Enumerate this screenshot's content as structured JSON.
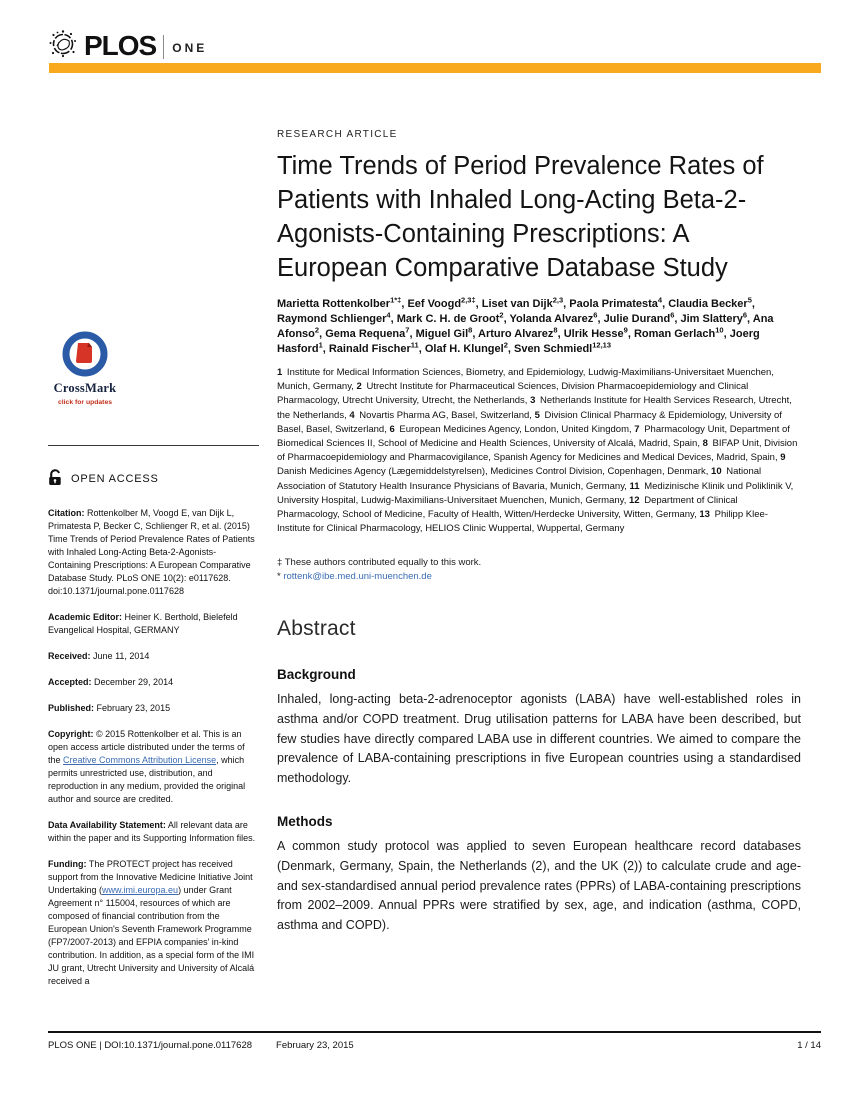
{
  "header": {
    "brand": "PLOS",
    "journal": "ONE",
    "accent_color": "#F8A91E"
  },
  "article": {
    "kicker": "RESEARCH ARTICLE",
    "title": "Time Trends of Period Prevalence Rates of Patients with Inhaled Long-Acting Beta-2-Agonists-Containing Prescriptions: A European Comparative Database Study",
    "authors": [
      {
        "name": "Marietta Rottenkolber",
        "sup": "1*‡"
      },
      {
        "name": "Eef Voogd",
        "sup": "2,3‡"
      },
      {
        "name": "Liset van Dijk",
        "sup": "2,3"
      },
      {
        "name": "Paola Primatesta",
        "sup": "4"
      },
      {
        "name": "Claudia Becker",
        "sup": "5"
      },
      {
        "name": "Raymond Schlienger",
        "sup": "4"
      },
      {
        "name": "Mark C. H. de Groot",
        "sup": "2"
      },
      {
        "name": "Yolanda Alvarez",
        "sup": "6"
      },
      {
        "name": "Julie Durand",
        "sup": "6"
      },
      {
        "name": "Jim Slattery",
        "sup": "6"
      },
      {
        "name": "Ana Afonso",
        "sup": "2"
      },
      {
        "name": "Gema Requena",
        "sup": "7"
      },
      {
        "name": "Miguel Gil",
        "sup": "8"
      },
      {
        "name": "Arturo Alvarez",
        "sup": "8"
      },
      {
        "name": "Ulrik Hesse",
        "sup": "9"
      },
      {
        "name": "Roman Gerlach",
        "sup": "10"
      },
      {
        "name": "Joerg Hasford",
        "sup": "1"
      },
      {
        "name": "Rainald Fischer",
        "sup": "11"
      },
      {
        "name": "Olaf H. Klungel",
        "sup": "2"
      },
      {
        "name": "Sven Schmiedl",
        "sup": "12,13"
      }
    ],
    "affiliations": [
      {
        "num": "1",
        "text": "Institute for Medical Information Sciences, Biometry, and Epidemiology, Ludwig-Maximilians-Universitaet Muenchen, Munich, Germany"
      },
      {
        "num": "2",
        "text": "Utrecht Institute for Pharmaceutical Sciences, Division Pharmacoepidemiology and Clinical Pharmacology, Utrecht University, Utrecht, the Netherlands"
      },
      {
        "num": "3",
        "text": "Netherlands Institute for Health Services Research, Utrecht, the Netherlands"
      },
      {
        "num": "4",
        "text": "Novartis Pharma AG, Basel, Switzerland"
      },
      {
        "num": "5",
        "text": "Division Clinical Pharmacy & Epidemiology, University of Basel, Basel, Switzerland"
      },
      {
        "num": "6",
        "text": "European Medicines Agency, London, United Kingdom"
      },
      {
        "num": "7",
        "text": "Pharmacology Unit, Department of Biomedical Sciences II, School of Medicine and Health Sciences, University of Alcalá, Madrid, Spain"
      },
      {
        "num": "8",
        "text": "BIFAP Unit, Division of Pharmacoepidemiology and Pharmacovigilance, Spanish Agency for Medicines and Medical Devices, Madrid, Spain"
      },
      {
        "num": "9",
        "text": "Danish Medicines Agency (Lægemiddelstyrelsen), Medicines Control Division, Copenhagen, Denmark"
      },
      {
        "num": "10",
        "text": "National Association of Statutory Health Insurance Physicians of Bavaria, Munich, Germany"
      },
      {
        "num": "11",
        "text": "Medizinische Klinik und Poliklinik V, University Hospital, Ludwig-Maximilians-Universitaet Muenchen, Munich, Germany"
      },
      {
        "num": "12",
        "text": "Department of Clinical Pharmacology, School of Medicine, Faculty of Health, Witten/Herdecke University, Witten, Germany"
      },
      {
        "num": "13",
        "text": "Philipp Klee-Institute for Clinical Pharmacology, HELIOS Clinic Wuppertal, Wuppertal, Germany"
      }
    ],
    "contrib_note": "‡ These authors contributed equally to this work.",
    "email_marker": "*",
    "email": "rottenk@ibe.med.uni-muenchen.de",
    "abstract_heading": "Abstract",
    "sections": [
      {
        "heading": "Background",
        "text": "Inhaled, long-acting beta-2-adrenoceptor agonists (LABA) have well-established roles in asthma and/or COPD treatment. Drug utilisation patterns for LABA have been described, but few studies have directly compared LABA use in different countries. We aimed to compare the prevalence of LABA-containing prescriptions in five European countries using a standardised methodology."
      },
      {
        "heading": "Methods",
        "text": "A common study protocol was applied to seven European healthcare record databases (Denmark, Germany, Spain, the Netherlands (2), and the UK (2)) to calculate crude and age- and sex-standardised annual period prevalence rates (PPRs) of LABA-containing prescriptions from 2002–2009. Annual PPRs were stratified by sex, age, and indication (asthma, COPD, asthma and COPD)."
      }
    ]
  },
  "sidebar": {
    "crossmark": {
      "title": "CrossMark",
      "subtitle": "click for updates"
    },
    "open_access": "OPEN ACCESS",
    "citation": {
      "label": "Citation:",
      "text": "Rottenkolber M, Voogd E, van Dijk L, Primatesta P, Becker C, Schlienger R, et al. (2015) Time Trends of Period Prevalence Rates of Patients with Inhaled Long-Acting Beta-2-Agonists-Containing Prescriptions: A European Comparative Database Study. PLoS ONE 10(2): e0117628. doi:10.1371/journal.pone.0117628"
    },
    "editor": {
      "label": "Academic Editor:",
      "text": "Heiner K. Berthold, Bielefeld Evangelical Hospital, GERMANY"
    },
    "received": {
      "label": "Received:",
      "value": "June 11, 2014"
    },
    "accepted": {
      "label": "Accepted:",
      "value": "December 29, 2014"
    },
    "published": {
      "label": "Published:",
      "value": "February 23, 2015"
    },
    "copyright": {
      "label": "Copyright:",
      "pre": "© 2015 Rottenkolber et al. This is an open access article distributed under the terms of the ",
      "link": "Creative Commons Attribution License",
      "post": ", which permits unrestricted use, distribution, and reproduction in any medium, provided the original author and source are credited."
    },
    "data_availability": {
      "label": "Data Availability Statement:",
      "text": "All relevant data are within the paper and its Supporting Information files."
    },
    "funding": {
      "label": "Funding:",
      "pre": "The PROTECT project has received support from the Innovative Medicine Initiative Joint Undertaking (",
      "link": "www.imi.europa.eu",
      "post": ") under Grant Agreement n° 115004, resources of which are composed of financial contribution from the European Union's Seventh Framework Programme (FP7/2007-2013) and EFPIA companies' in-kind contribution. In addition, as a special form of the IMI JU grant, Utrecht University and University of Alcalá received a"
    }
  },
  "footer": {
    "left": "PLOS ONE | DOI:10.1371/journal.pone.0117628",
    "date": "February 23, 2015",
    "page": "1 / 14"
  }
}
